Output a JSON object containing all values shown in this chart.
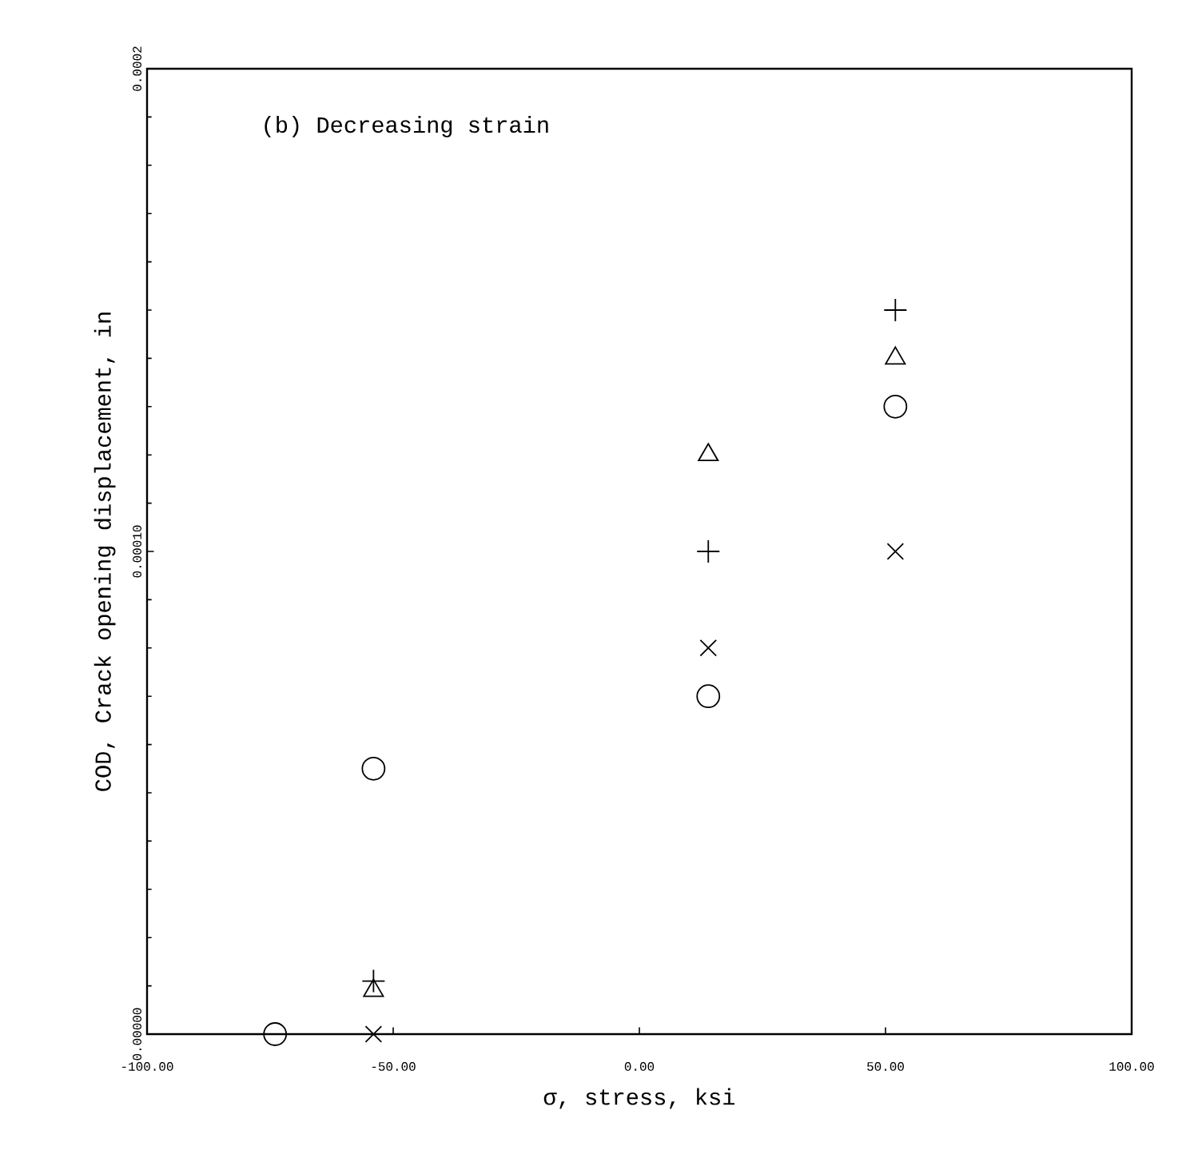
{
  "chart_data": {
    "type": "scatter",
    "xlabel": "σ, stress, ksi",
    "ylabel": "COD, Crack opening displacement, in",
    "annotations": [
      "(b) Decreasing strain"
    ],
    "xlim": [
      -100,
      100
    ],
    "xticks": [
      {
        "value": -100,
        "label": "-100.00"
      },
      {
        "value": -50,
        "label": "-50.00"
      },
      {
        "value": 0,
        "label": "0.00"
      },
      {
        "value": 50,
        "label": "50.00"
      },
      {
        "value": 100,
        "label": "100.00"
      }
    ],
    "ylim": [
      0,
      0.0002
    ],
    "yticks": [
      {
        "value": 0,
        "label": "0.00000"
      },
      {
        "value": 0.0001,
        "label": "0.00010"
      },
      {
        "value": 0.0002,
        "label": "0.0002"
      }
    ],
    "grid": false,
    "series": [
      {
        "color": "#000000",
        "marker": "circle",
        "x": [
          -74,
          -54,
          14,
          52
        ],
        "values": [
          0,
          5.5e-05,
          7e-05,
          0.00013
        ]
      },
      {
        "color": "#000000",
        "marker": "triangle",
        "x": [
          -54,
          14,
          52
        ],
        "values": [
          9e-06,
          0.00012,
          0.00014
        ]
      },
      {
        "color": "#000000",
        "marker": "cross",
        "x": [
          -54,
          14,
          52
        ],
        "values": [
          1.1e-05,
          0.0001,
          0.00015
        ]
      },
      {
        "color": "#000000",
        "x": [
          -54,
          14,
          52
        ],
        "values": [
          0,
          8e-05,
          0.0001
        ]
      }
    ]
  }
}
